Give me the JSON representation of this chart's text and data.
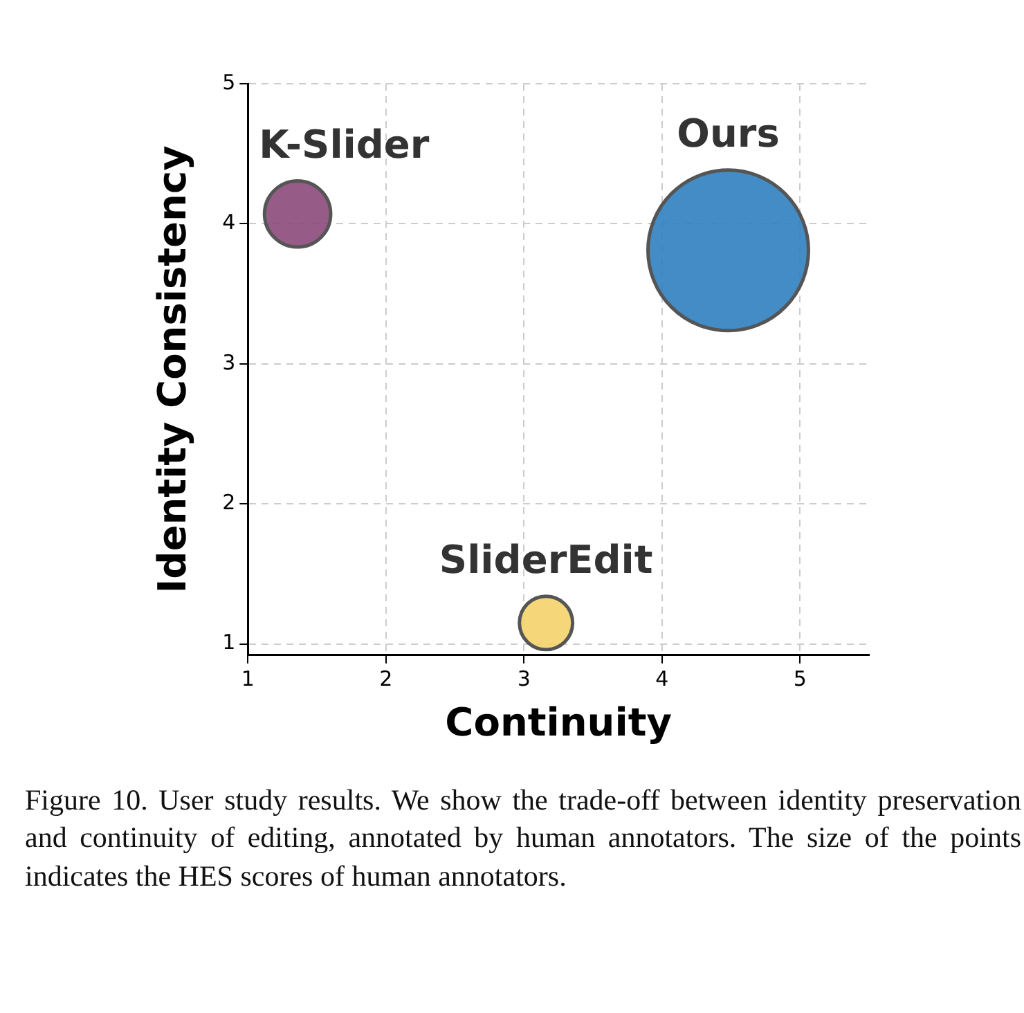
{
  "chart_data": {
    "type": "bubble",
    "xlabel": "Continuity",
    "ylabel": "Identity Consistency",
    "xlim": [
      1,
      5.5
    ],
    "xticks": [
      1,
      2,
      3,
      4,
      5
    ],
    "ylim": [
      0.92,
      5
    ],
    "yticks": [
      1,
      2,
      3,
      4,
      5
    ],
    "grid": true,
    "legend": false,
    "series": [
      {
        "name": "K-Slider",
        "color": "#8b4a7a",
        "x": [
          1.36
        ],
        "values": [
          4.07
        ],
        "sizes": [
          0.17
        ]
      },
      {
        "name": "Ours",
        "color": "#2f7fbf",
        "x": [
          4.48
        ],
        "values": [
          3.81
        ],
        "sizes": [
          1
        ]
      },
      {
        "name": "SliderEdit",
        "color": "#f4d36b",
        "x": [
          3.16
        ],
        "values": [
          1.15
        ],
        "sizes": [
          0.11
        ]
      }
    ],
    "annotations": [
      "Figure 10. User study results. We show the trade-off between identity preservation and continuity of editing, annotated by human annotators. The size of the points indicates the HES scores of human annotators."
    ]
  }
}
